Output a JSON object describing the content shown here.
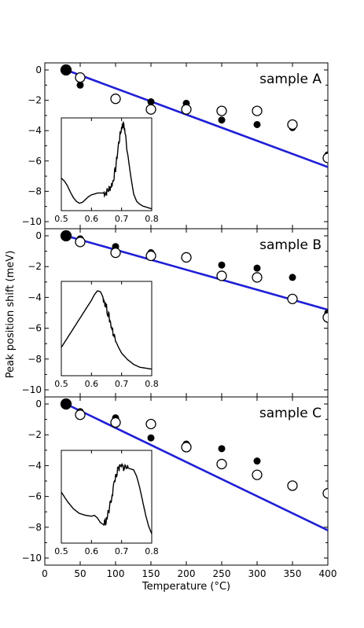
{
  "figure": {
    "ylabel": "Peak position shift (meV)",
    "xlabel": "Temperature (°C)"
  },
  "chart_data": [
    {
      "type": "scatter",
      "label": "sample A",
      "xlim": [
        0,
        400
      ],
      "ylim": [
        -10,
        0.5
      ],
      "yticks": [
        0,
        -2,
        -4,
        -6,
        -8,
        -10
      ],
      "ytick_labels": [
        "0",
        "−2",
        "−4",
        "−6",
        "−8",
        "−10"
      ],
      "series": [
        {
          "marker": "filled",
          "x": [
            30,
            50,
            100,
            150,
            200,
            250,
            300,
            350,
            400
          ],
          "y": [
            0,
            -1.0,
            -2.0,
            -2.1,
            -2.2,
            -3.3,
            -3.6,
            -3.8,
            -5.6
          ]
        },
        {
          "marker": "open",
          "x": [
            30,
            50,
            100,
            150,
            200,
            250,
            300,
            350,
            400
          ],
          "y": [
            0,
            -0.5,
            -1.9,
            -2.6,
            -2.6,
            -2.7,
            -2.7,
            -3.6,
            -5.8
          ]
        }
      ],
      "fit_line": {
        "x": [
          30,
          400
        ],
        "y": [
          0,
          -6.4
        ],
        "color": "#1f1fd6"
      },
      "inset": {
        "xlim": [
          0.5,
          0.8
        ],
        "xticks": [
          0.5,
          0.6,
          0.7,
          0.8
        ],
        "xtick_labels": [
          "0.5",
          "0.6",
          "0.7",
          "0.8"
        ],
        "curve": [
          [
            0.5,
            0.35
          ],
          [
            0.51,
            0.32
          ],
          [
            0.52,
            0.27
          ],
          [
            0.53,
            0.2
          ],
          [
            0.54,
            0.14
          ],
          [
            0.55,
            0.1
          ],
          [
            0.56,
            0.08
          ],
          [
            0.57,
            0.09
          ],
          [
            0.58,
            0.12
          ],
          [
            0.59,
            0.15
          ],
          [
            0.6,
            0.17
          ],
          [
            0.61,
            0.18
          ],
          [
            0.62,
            0.19
          ],
          [
            0.63,
            0.19
          ],
          [
            0.64,
            0.19
          ],
          [
            0.65,
            0.2
          ],
          [
            0.66,
            0.24
          ],
          [
            0.67,
            0.3
          ],
          [
            0.68,
            0.45
          ],
          [
            0.69,
            0.72
          ],
          [
            0.7,
            0.9
          ],
          [
            0.705,
            0.93
          ],
          [
            0.71,
            0.88
          ],
          [
            0.72,
            0.62
          ],
          [
            0.73,
            0.38
          ],
          [
            0.74,
            0.18
          ],
          [
            0.75,
            0.1
          ],
          [
            0.76,
            0.07
          ],
          [
            0.77,
            0.05
          ],
          [
            0.78,
            0.04
          ],
          [
            0.79,
            0.03
          ],
          [
            0.8,
            0.02
          ]
        ],
        "noise_range": [
          0.64,
          0.72
        ]
      }
    },
    {
      "type": "scatter",
      "label": "sample B",
      "xlim": [
        0,
        400
      ],
      "ylim": [
        -10,
        0.5
      ],
      "yticks": [
        0,
        -2,
        -4,
        -6,
        -8,
        -10
      ],
      "ytick_labels": [
        "0",
        "−2",
        "−4",
        "−6",
        "−8",
        "−10"
      ],
      "series": [
        {
          "marker": "filled",
          "x": [
            30,
            50,
            100,
            150,
            200,
            250,
            300,
            350,
            400
          ],
          "y": [
            0,
            -0.2,
            -0.7,
            -1.1,
            -1.5,
            -1.9,
            -2.1,
            -2.7,
            -5.0
          ]
        },
        {
          "marker": "open",
          "x": [
            30,
            50,
            100,
            150,
            200,
            250,
            300,
            350,
            400
          ],
          "y": [
            0,
            -0.4,
            -1.1,
            -1.3,
            -1.4,
            -2.6,
            -2.7,
            -4.1,
            -5.3
          ]
        }
      ],
      "fit_line": {
        "x": [
          30,
          400
        ],
        "y": [
          0,
          -4.8
        ],
        "color": "#1f1fd6"
      },
      "inset": {
        "xlim": [
          0.5,
          0.8
        ],
        "xticks": [
          0.5,
          0.6,
          0.7,
          0.8
        ],
        "xtick_labels": [
          "0.5",
          "0.6",
          "0.7",
          "0.8"
        ],
        "curve": [
          [
            0.5,
            0.3
          ],
          [
            0.52,
            0.4
          ],
          [
            0.54,
            0.5
          ],
          [
            0.56,
            0.6
          ],
          [
            0.58,
            0.7
          ],
          [
            0.6,
            0.8
          ],
          [
            0.61,
            0.86
          ],
          [
            0.62,
            0.9
          ],
          [
            0.63,
            0.89
          ],
          [
            0.64,
            0.82
          ],
          [
            0.65,
            0.72
          ],
          [
            0.66,
            0.6
          ],
          [
            0.67,
            0.48
          ],
          [
            0.68,
            0.37
          ],
          [
            0.69,
            0.3
          ],
          [
            0.7,
            0.24
          ],
          [
            0.72,
            0.17
          ],
          [
            0.74,
            0.12
          ],
          [
            0.76,
            0.09
          ],
          [
            0.78,
            0.08
          ],
          [
            0.8,
            0.07
          ]
        ],
        "noise_range": [
          0.64,
          0.68
        ]
      }
    },
    {
      "type": "scatter",
      "label": "sample C",
      "xlim": [
        0,
        400
      ],
      "ylim": [
        -10,
        0.5
      ],
      "yticks": [
        0,
        -2,
        -4,
        -6,
        -8,
        -10
      ],
      "ytick_labels": [
        "0",
        "−2",
        "−4",
        "−6",
        "−8",
        "−10"
      ],
      "series": [
        {
          "marker": "filled",
          "x": [
            30,
            50,
            100,
            150,
            200,
            250,
            300,
            350,
            400
          ],
          "y": [
            0,
            -0.5,
            -0.9,
            -2.2,
            -2.6,
            -2.9,
            -3.7,
            -5.4,
            -5.7
          ]
        },
        {
          "marker": "open",
          "x": [
            30,
            50,
            100,
            150,
            200,
            250,
            300,
            350,
            400
          ],
          "y": [
            0,
            -0.7,
            -1.2,
            -1.3,
            -2.8,
            -3.9,
            -4.6,
            -5.3,
            -5.8
          ]
        }
      ],
      "fit_line": {
        "x": [
          30,
          400
        ],
        "y": [
          0,
          -8.2
        ],
        "color": "#1f1fd6"
      },
      "inset": {
        "xlim": [
          0.5,
          0.8
        ],
        "xticks": [
          0.5,
          0.6,
          0.7,
          0.8
        ],
        "xtick_labels": [
          "0.5",
          "0.6",
          "0.7",
          "0.8"
        ],
        "curve": [
          [
            0.5,
            0.55
          ],
          [
            0.52,
            0.45
          ],
          [
            0.54,
            0.37
          ],
          [
            0.56,
            0.32
          ],
          [
            0.58,
            0.3
          ],
          [
            0.6,
            0.29
          ],
          [
            0.61,
            0.3
          ],
          [
            0.62,
            0.27
          ],
          [
            0.63,
            0.22
          ],
          [
            0.64,
            0.2
          ],
          [
            0.65,
            0.25
          ],
          [
            0.66,
            0.38
          ],
          [
            0.67,
            0.55
          ],
          [
            0.68,
            0.72
          ],
          [
            0.69,
            0.8
          ],
          [
            0.7,
            0.82
          ],
          [
            0.71,
            0.82
          ],
          [
            0.72,
            0.81
          ],
          [
            0.73,
            0.8
          ],
          [
            0.74,
            0.79
          ],
          [
            0.75,
            0.72
          ],
          [
            0.76,
            0.6
          ],
          [
            0.77,
            0.45
          ],
          [
            0.78,
            0.3
          ],
          [
            0.79,
            0.18
          ],
          [
            0.8,
            0.1
          ]
        ],
        "noise_range": [
          0.64,
          0.72
        ]
      }
    }
  ]
}
